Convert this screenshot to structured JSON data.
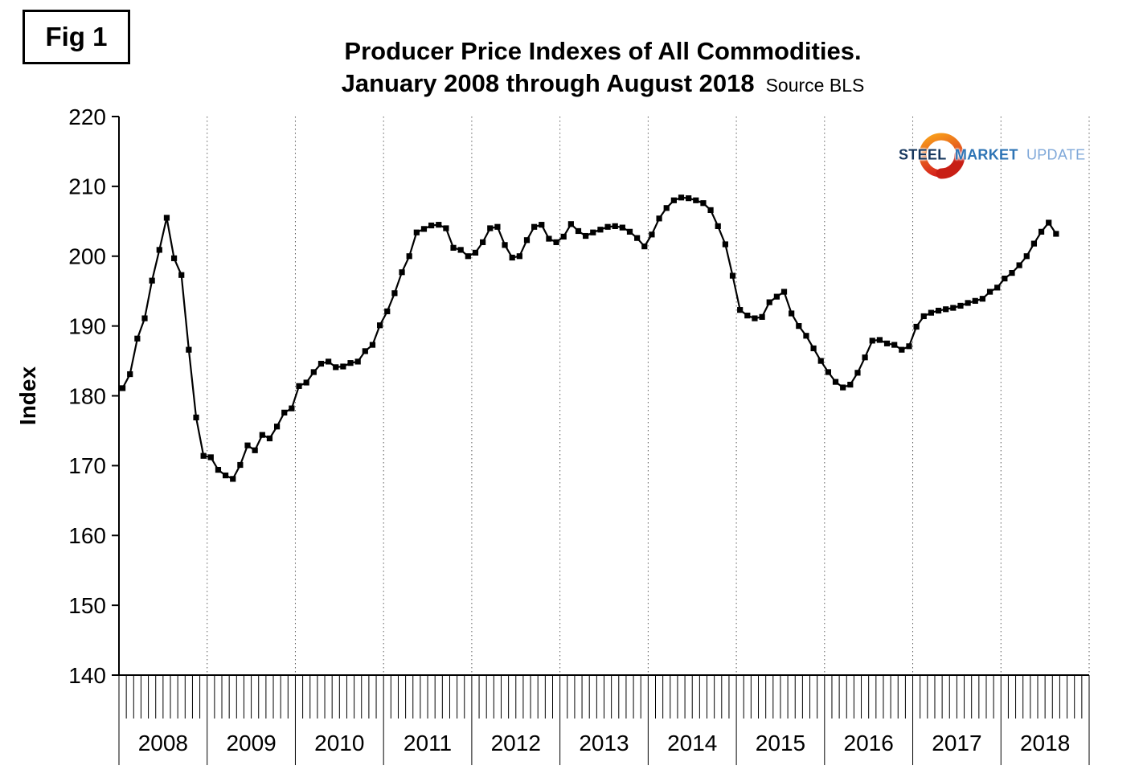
{
  "fig_label": "Fig 1",
  "title": {
    "line1": "Producer Price Indexes of All Commodities.",
    "line2": "January 2008 through August 2018",
    "source": "Source BLS"
  },
  "logo": {
    "word1": "STEEL",
    "word2": "MARKET",
    "word3": "UPDATE",
    "ring_color_top": "#f9a11b",
    "ring_color_bottom": "#d7261d"
  },
  "chart_data": {
    "type": "line",
    "title": "Producer Price Indexes of All Commodities. January 2008 through August 2018",
    "xlabel": "",
    "ylabel": "Index",
    "ylim": [
      140,
      220
    ],
    "yticks": [
      140,
      150,
      160,
      170,
      180,
      190,
      200,
      210,
      220
    ],
    "x_years": [
      "2008",
      "2009",
      "2010",
      "2011",
      "2012",
      "2013",
      "2014",
      "2015",
      "2016",
      "2017",
      "2018"
    ],
    "x_start": "2008-01",
    "x_end": "2018-08",
    "grid": "vertical-dotted-per-year",
    "legend": "none",
    "marker": "square",
    "line_color": "#000000",
    "series": [
      {
        "name": "PPI All Commodities",
        "values": [
          181.1,
          183.1,
          188.2,
          191.1,
          196.5,
          200.9,
          205.5,
          199.7,
          197.3,
          186.6,
          176.9,
          171.4,
          171.2,
          169.4,
          168.6,
          168.1,
          170.1,
          172.9,
          172.2,
          174.4,
          173.9,
          175.6,
          177.6,
          178.2,
          181.4,
          181.9,
          183.4,
          184.6,
          184.9,
          184.1,
          184.2,
          184.7,
          184.9,
          186.4,
          187.3,
          190.1,
          192.1,
          194.7,
          197.7,
          200.0,
          203.4,
          203.9,
          204.4,
          204.5,
          204.0,
          201.2,
          200.9,
          200.0,
          200.5,
          202.0,
          204.0,
          204.2,
          201.6,
          199.8,
          200.0,
          202.3,
          204.2,
          204.5,
          202.5,
          202.0,
          202.8,
          204.6,
          203.6,
          202.9,
          203.4,
          203.8,
          204.2,
          204.3,
          204.1,
          203.5,
          202.6,
          201.4,
          203.1,
          205.4,
          206.9,
          208.0,
          208.4,
          208.3,
          208.0,
          207.6,
          206.6,
          204.3,
          201.7,
          197.2,
          192.3,
          191.5,
          191.1,
          191.3,
          193.4,
          194.2,
          194.9,
          191.8,
          190.0,
          188.6,
          186.8,
          185.0,
          183.4,
          182.0,
          181.2,
          181.6,
          183.3,
          185.5,
          187.9,
          188.0,
          187.5,
          187.3,
          186.6,
          187.1,
          189.9,
          191.4,
          191.9,
          192.2,
          192.4,
          192.6,
          192.9,
          193.3,
          193.6,
          193.9,
          194.9,
          195.5,
          196.8,
          197.6,
          198.7,
          200.0,
          201.8,
          203.5,
          204.8,
          203.2
        ]
      }
    ]
  }
}
